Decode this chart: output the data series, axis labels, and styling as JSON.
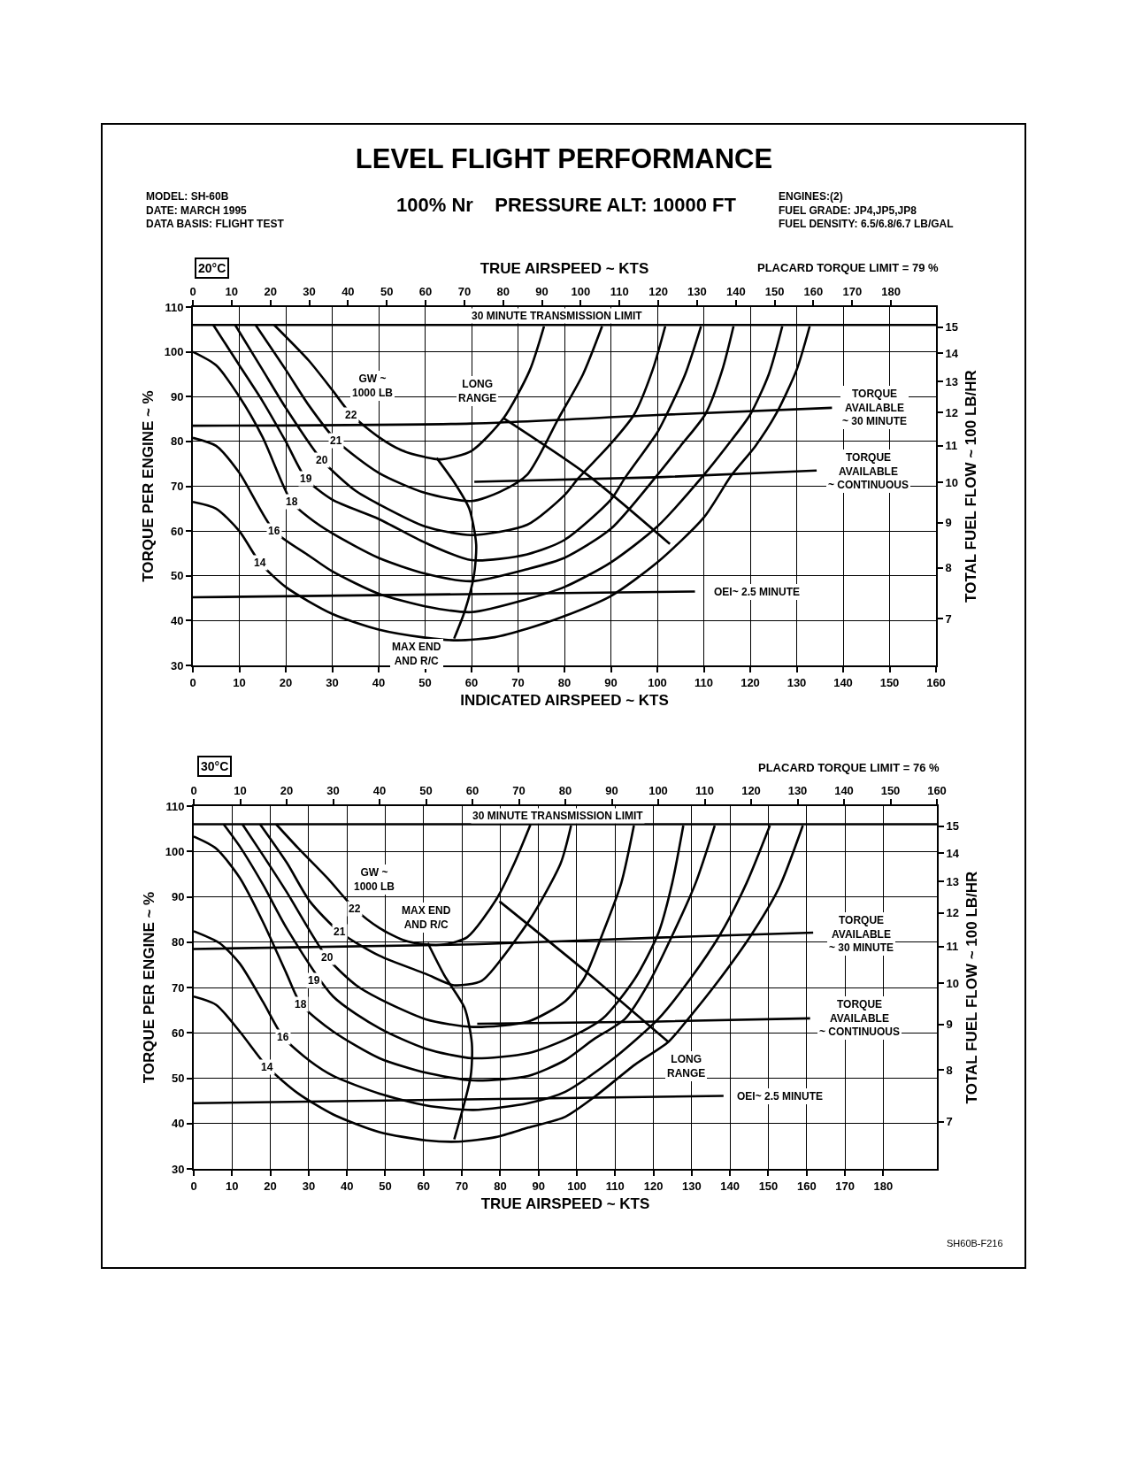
{
  "chart_data": [
    {
      "type": "line",
      "title": "LEVEL FLIGHT PERFORMANCE",
      "subtitle": "100% Nr    PRESSURE ALT: 10000 FT",
      "xlabel": "INDICATED AIRSPEED ~ KTS",
      "x2label": "TRUE AIRSPEED ~ KTS",
      "ylabel": "TORQUE PER ENGINE ~ %",
      "y2label": "TOTAL FUEL FLOW ~ 100 LB/HR",
      "grid": true,
      "log": "y2",
      "xlim": [
        0,
        160
      ],
      "xticks": [
        0,
        10,
        20,
        30,
        40,
        50,
        60,
        70,
        80,
        90,
        100,
        110,
        120,
        130,
        140,
        150,
        160
      ],
      "x2lim": [
        0,
        191.6
      ],
      "x2ticks": [
        0,
        10,
        20,
        30,
        40,
        50,
        60,
        70,
        80,
        90,
        100,
        110,
        120,
        130,
        140,
        150,
        160,
        170,
        180
      ],
      "ylim": [
        30,
        110
      ],
      "yticks": [
        30,
        40,
        50,
        60,
        70,
        80,
        90,
        100,
        110
      ],
      "y2lim": [
        6.2,
        15.8
      ],
      "y2ticks": [
        7,
        8,
        9,
        10,
        11,
        12,
        13,
        14,
        15
      ],
      "ref_lines": [
        {
          "axis": "y",
          "value": 106,
          "label": "30 MINUTE TRANSMISSION LIMIT",
          "color": "#000000"
        }
      ],
      "series": [
        {
          "color": "#000000",
          "x": [
            0,
            5,
            10,
            14.4,
            20,
            30,
            40,
            50,
            57,
            65,
            72,
            80,
            90,
            100,
            110,
            116,
            121,
            125.6,
            130,
            132.8
          ],
          "values": [
            66.5,
            65,
            60,
            53,
            47.5,
            41.5,
            38,
            36.2,
            35.6,
            36.3,
            38.2,
            41,
            45.5,
            53,
            63,
            72.5,
            78.8,
            86.2,
            96,
            105.7
          ]
        },
        {
          "color": "#000000",
          "x": [
            0,
            5,
            10,
            17.5,
            25,
            30,
            40,
            50,
            60,
            72,
            80,
            90,
            100,
            110,
            115,
            120,
            124,
            126.9
          ],
          "values": [
            80.8,
            79,
            73,
            60,
            54.5,
            51,
            46,
            43.2,
            41.9,
            44.8,
            47.5,
            53,
            61,
            72.5,
            79,
            86,
            95,
            105.7
          ]
        },
        {
          "color": "#000000",
          "x": [
            0,
            5,
            10,
            15,
            21.25,
            25,
            30,
            40,
            50,
            60,
            72,
            80,
            90,
            100,
            105,
            110.4,
            114,
            116.4
          ],
          "values": [
            100,
            97,
            90,
            81,
            66.5,
            63,
            59.5,
            54,
            50.5,
            48.8,
            51.5,
            54,
            60.5,
            72.5,
            79,
            86.2,
            96,
            105.7
          ]
        },
        {
          "color": "#000000",
          "x": [
            4.4,
            10,
            15,
            20,
            24.4,
            30,
            40,
            50,
            60,
            72,
            80,
            90,
            93,
            100,
            102,
            106,
            109.4
          ],
          "values": [
            106,
            97,
            89,
            80,
            71.6,
            67,
            62.7,
            57.4,
            53.5,
            54.8,
            58,
            67,
            71.8,
            82,
            86,
            95,
            105.7
          ]
        },
        {
          "color": "#000000",
          "x": [
            9.1,
            15,
            20,
            27.8,
            35,
            40,
            50,
            60,
            72,
            80,
            83,
            90,
            95,
            99,
            101.7
          ],
          "values": [
            106,
            96,
            87.5,
            75.8,
            69,
            66,
            61,
            59.1,
            61.4,
            68,
            71.8,
            79.5,
            86,
            96,
            105.7
          ]
        },
        {
          "color": "#000000",
          "x": [
            13.5,
            20,
            25,
            30.9,
            40,
            50,
            60,
            66,
            72,
            78.75,
            84,
            88.1
          ],
          "values": [
            106,
            96,
            88,
            80.2,
            73,
            68.5,
            66.7,
            68.7,
            72.6,
            85.2,
            95,
            105.7
          ]
        },
        {
          "color": "#000000",
          "x": [
            17.5,
            25,
            30,
            34.1,
            40,
            45,
            50,
            53.5,
            60,
            66.9,
            72.5,
            75.6
          ],
          "values": [
            106,
            98,
            91.5,
            86,
            81,
            78,
            76.5,
            76,
            77.9,
            85.2,
            95.8,
            105.7
          ]
        },
        {
          "color": "#000000",
          "x": [
            56.25,
            58.5,
            60.5,
            61,
            59.5,
            56.5,
            52.5
          ],
          "values": [
            36,
            42,
            50,
            57,
            65,
            70.5,
            76.3
          ]
        },
        {
          "color": "#000000",
          "x": [
            66.9,
            85,
            102.7
          ],
          "values": [
            85.2,
            72.5,
            57.1
          ]
        },
        {
          "color": "#000000",
          "x": [
            0,
            60,
            100,
            137.6
          ],
          "values": [
            83.5,
            84,
            85.9,
            87.5
          ]
        },
        {
          "color": "#000000",
          "x": [
            60.6,
            100,
            134.3
          ],
          "values": [
            71,
            72,
            73.5
          ]
        },
        {
          "color": "#000000",
          "x": [
            0,
            108.1
          ],
          "values": [
            45.2,
            46.5
          ]
        }
      ],
      "annotations": [
        "MODEL: SH-60B\nDATE: MARCH 1995\nDATA BASIS: FLIGHT TEST",
        "ENGINES:(2)\nFUEL GRADE: JP4,JP5,JP8\nFUEL DENSITY: 6.5/6.8/6.7 LB/GAL",
        "20°C",
        "PLACARD TORQUE LIMIT = 79 %",
        "GW ~\n1000 LB",
        "LONG\nRANGE",
        "MAX END\nAND R/C",
        "TORQUE\nAVAILABLE\n~ 30 MINUTE",
        "TORQUE\nAVAILABLE\n~ CONTINUOUS",
        "OEI~ 2.5 MINUTE",
        {
          "text": "22",
          "x": 34.1,
          "y": 86
        },
        {
          "text": "21",
          "x": 30.9,
          "y": 80.2
        },
        {
          "text": "20",
          "x": 27.8,
          "y": 75.8
        },
        {
          "text": "19",
          "x": 24.4,
          "y": 71.6
        },
        {
          "text": "18",
          "x": 21.25,
          "y": 66.5
        },
        {
          "text": "16",
          "x": 17.5,
          "y": 60
        },
        {
          "text": "14",
          "x": 14.4,
          "y": 53
        }
      ]
    },
    {
      "type": "line",
      "xlabel": "TRUE AIRSPEED ~ KTS",
      "ylabel": "TORQUE PER ENGINE ~ %",
      "y2label": "TOTAL FUEL FLOW ~ 100 LB/HR",
      "grid": true,
      "log": "y2",
      "xlim": [
        0,
        194
      ],
      "xticks": [
        0,
        10,
        20,
        30,
        40,
        50,
        60,
        70,
        80,
        90,
        100,
        110,
        120,
        130,
        140,
        150,
        160,
        170,
        180
      ],
      "x2lim": [
        0,
        160
      ],
      "x2ticks": [
        0,
        10,
        20,
        30,
        40,
        50,
        60,
        70,
        80,
        90,
        100,
        110,
        120,
        130,
        140,
        150,
        160
      ],
      "ylim": [
        30,
        110
      ],
      "yticks": [
        30,
        40,
        50,
        60,
        70,
        80,
        90,
        100,
        110
      ],
      "y2lim": [
        6.2,
        15.8
      ],
      "y2ticks": [
        7,
        8,
        9,
        10,
        11,
        12,
        13,
        14,
        15
      ],
      "ref_lines": [
        {
          "axis": "y",
          "value": 106,
          "label": "30 MINUTE TRANSMISSION LIMIT",
          "color": "#000000"
        }
      ],
      "series": [
        {
          "color": "#000000",
          "x": [
            0,
            5.8,
            12,
            19.2,
            27.3,
            36.4,
            48.5,
            60.6,
            69.1,
            78.8,
            87.3,
            97,
            104.8,
            115.2,
            123.9,
            129.1,
            137,
            145.7,
            152.8,
            159
          ],
          "values": [
            68,
            66.2,
            60.3,
            52.5,
            46.6,
            42,
            38.1,
            36.3,
            36,
            37,
            39.1,
            41.5,
            46,
            53,
            58,
            63.1,
            71.5,
            81.8,
            92,
            105.7
          ]
        },
        {
          "color": "#000000",
          "x": [
            0,
            6.7,
            12,
            18.1,
            23.4,
            30.3,
            36.4,
            48.5,
            60.6,
            73,
            87.3,
            97,
            109.1,
            121.3,
            129.7,
            137.5,
            144.3,
            150.4
          ],
          "values": [
            82.4,
            79.8,
            75.3,
            66.8,
            59,
            53.8,
            50.5,
            46.6,
            44,
            43,
            44.5,
            47,
            54,
            63.1,
            72,
            81.8,
            93,
            105.7
          ]
        },
        {
          "color": "#000000",
          "x": [
            0,
            5.8,
            12,
            18.1,
            24.1,
            28,
            36.4,
            48.5,
            60.6,
            73,
            87.3,
            97,
            104.3,
            112.6,
            118.8,
            125.1,
            131,
            136
          ],
          "values": [
            103.3,
            100.7,
            94.2,
            84.4,
            73.3,
            66.3,
            60.3,
            54.4,
            51.2,
            49.5,
            50.5,
            54,
            58.5,
            63.1,
            71,
            81.8,
            93,
            105.7
          ]
        },
        {
          "color": "#000000",
          "x": [
            7.8,
            12.1,
            18.2,
            24.3,
            36.4,
            48.5,
            60.6,
            72.8,
            87.3,
            97,
            106.7,
            115.2,
            121.3,
            124.9,
            127.8
          ],
          "values": [
            106,
            101,
            92.5,
            83,
            68,
            61,
            56.5,
            54.4,
            55.5,
            58.5,
            63.1,
            72,
            82,
            93,
            105.7
          ]
        },
        {
          "color": "#000000",
          "x": [
            12.7,
            18.2,
            24.3,
            34.8,
            42.4,
            48.5,
            60.6,
            72.8,
            87.3,
            97,
            101.9,
            106.7,
            111.6,
            114.9
          ],
          "values": [
            106,
            99,
            91,
            76.6,
            70.5,
            67.5,
            63,
            61.3,
            62.5,
            67,
            72,
            81.8,
            93,
            105.7
          ]
        },
        {
          "color": "#000000",
          "x": [
            17.3,
            24.3,
            30.3,
            38,
            48.5,
            60.6,
            67.9,
            75.2,
            80.6,
            88.3,
            95.8,
            98.5
          ],
          "values": [
            106,
            97.5,
            89,
            82.3,
            77,
            73,
            70.5,
            71.5,
            76.6,
            85.7,
            97.4,
            105.7
          ]
        },
        {
          "color": "#000000",
          "x": [
            21.5,
            27.3,
            34.8,
            42.1,
            48.5,
            54.6,
            60.6,
            65.4,
            71.4,
            79.1,
            83.7,
            87.9
          ],
          "values": [
            106,
            100.7,
            94.2,
            87.3,
            83.1,
            80.5,
            79.5,
            79.5,
            81.1,
            89.6,
            97.4,
            105.9
          ]
        },
        {
          "color": "#000000",
          "x": [
            68,
            72.3,
            72.6,
            70.7,
            65.4,
            61.1
          ],
          "values": [
            36.5,
            50.5,
            57.7,
            65.5,
            72.7,
            79.8
          ]
        },
        {
          "color": "#000000",
          "x": [
            79.8,
            103.1,
            123.9
          ],
          "values": [
            89,
            73,
            58
          ]
        },
        {
          "color": "#000000",
          "x": [
            0,
            72.8,
            121.3,
            161.7
          ],
          "values": [
            78.5,
            79.5,
            81,
            82.1
          ]
        },
        {
          "color": "#000000",
          "x": [
            74,
            121.3,
            160.9
          ],
          "values": [
            62,
            62.5,
            63.2
          ]
        },
        {
          "color": "#000000",
          "x": [
            0,
            138.3
          ],
          "values": [
            44.5,
            46.1
          ]
        }
      ],
      "annotations": [
        "30°C",
        "PLACARD TORQUE LIMIT = 76 %",
        "SH60B-F216",
        "GW ~\n1000 LB",
        "MAX END\nAND R/C",
        "LONG\nRANGE",
        "OEI~ 2.5 MINUTE",
        "TORQUE\nAVAILABLE\n~ 30 MINUTE",
        "TORQUE\nAVAILABLE\n~ CONTINUOUS",
        {
          "text": "22",
          "x": 42.1,
          "y": 87.3
        },
        {
          "text": "21",
          "x": 38,
          "y": 82.3
        },
        {
          "text": "20",
          "x": 34.8,
          "y": 76.6
        },
        {
          "text": "19",
          "x": 31.4,
          "y": 71.5
        },
        {
          "text": "18",
          "x": 28,
          "y": 66.3
        },
        {
          "text": "16",
          "x": 23.4,
          "y": 59
        },
        {
          "text": "14",
          "x": 19.2,
          "y": 52.5
        }
      ]
    }
  ]
}
